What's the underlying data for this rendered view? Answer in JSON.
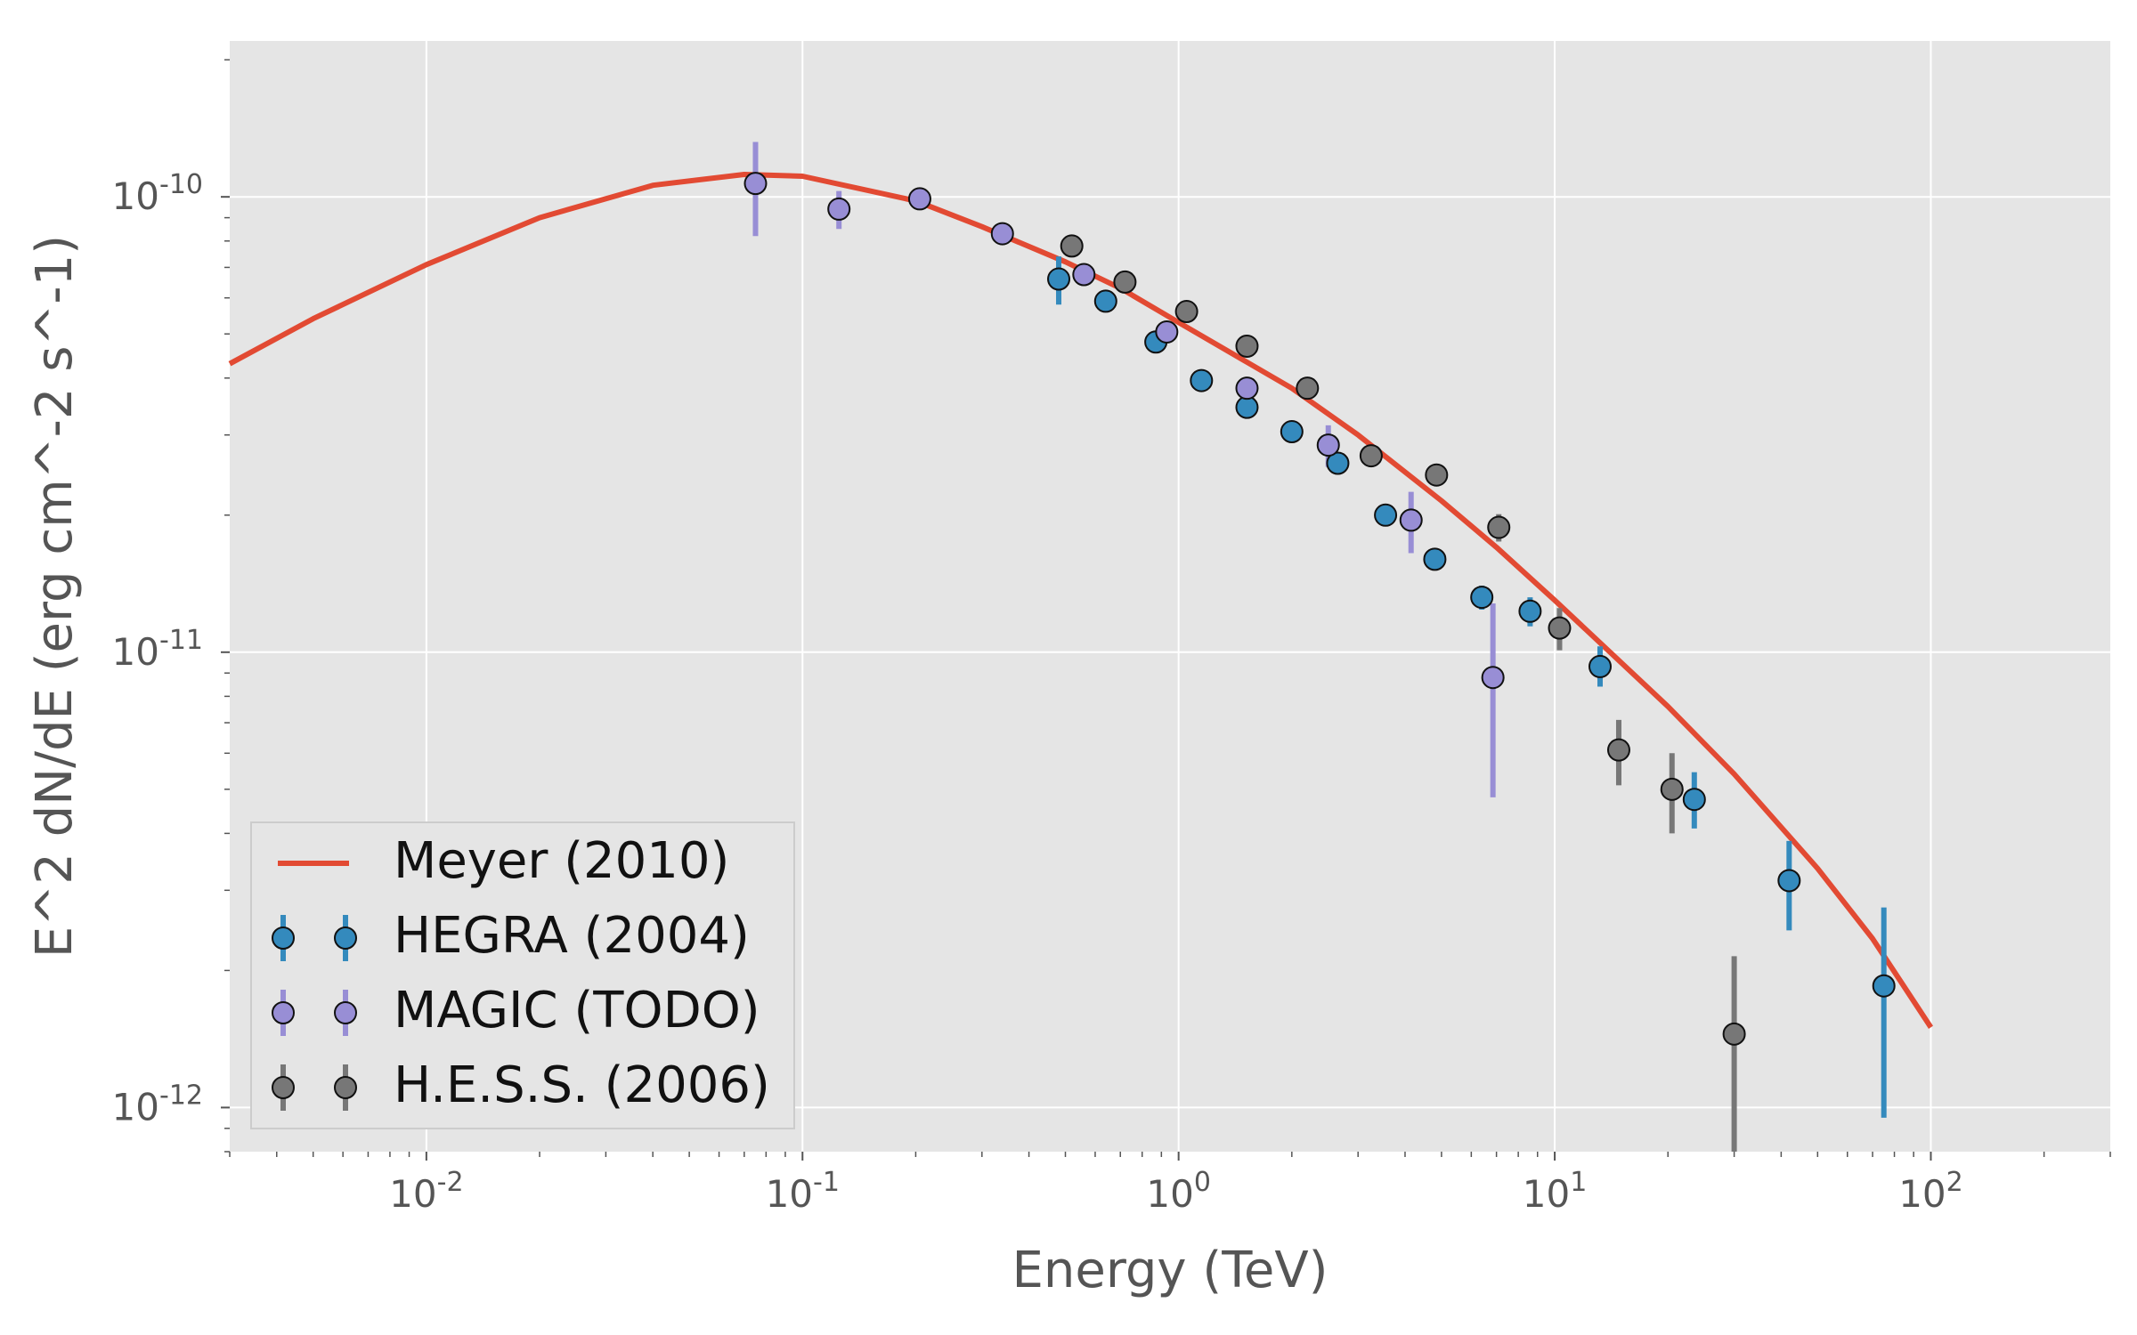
{
  "chart_data": {
    "type": "scatter",
    "title": "",
    "xlabel": "Energy (TeV)",
    "ylabel": "E^2 dN/dE (erg cm^-2 s^-1)",
    "xscale": "log",
    "yscale": "log",
    "xlim": [
      0.003,
      300
    ],
    "ylim": [
      8e-13,
      2.2e-10
    ],
    "grid": true,
    "legend_position": "lower left",
    "x_ticks": [
      {
        "value": 0.01,
        "base": "10",
        "exp": "-2"
      },
      {
        "value": 0.1,
        "base": "10",
        "exp": "-1"
      },
      {
        "value": 1,
        "base": "10",
        "exp": "0"
      },
      {
        "value": 10,
        "base": "10",
        "exp": "1"
      },
      {
        "value": 100,
        "base": "10",
        "exp": "2"
      }
    ],
    "y_ticks": [
      {
        "value": 1e-12,
        "base": "10",
        "exp": "-12"
      },
      {
        "value": 1e-11,
        "base": "10",
        "exp": "-11"
      },
      {
        "value": 1e-10,
        "base": "10",
        "exp": "-10"
      }
    ],
    "model": {
      "name": "Meyer (2010)",
      "color": "#E24A33",
      "x": [
        0.003,
        0.005,
        0.01,
        0.02,
        0.04,
        0.07,
        0.1,
        0.2,
        0.3,
        0.5,
        0.7,
        1,
        2,
        3,
        5,
        7,
        10,
        20,
        30,
        50,
        70,
        100
      ],
      "y": [
        4.3e-11,
        5.4e-11,
        7.1e-11,
        9e-11,
        1.06e-10,
        1.12e-10,
        1.11e-10,
        9.8e-11,
        8.6e-11,
        7.2e-11,
        6.3e-11,
        5.3e-11,
        3.8e-11,
        3e-11,
        2.15e-11,
        1.7e-11,
        1.3e-11,
        7.6e-12,
        5.4e-12,
        3.35e-12,
        2.35e-12,
        1.5e-12
      ]
    },
    "series": [
      {
        "name": "HEGRA (2004)",
        "color": "#348ABD",
        "points": [
          {
            "x": 0.48,
            "y": 6.6e-11,
            "lo": 5.8e-11,
            "hi": 7.4e-11
          },
          {
            "x": 0.64,
            "y": 5.9e-11,
            "lo": 5.6e-11,
            "hi": 6.2e-11
          },
          {
            "x": 0.87,
            "y": 4.8e-11,
            "lo": 4.6e-11,
            "hi": 5e-11
          },
          {
            "x": 1.15,
            "y": 3.95e-11,
            "lo": 3.8e-11,
            "hi": 4.1e-11
          },
          {
            "x": 1.52,
            "y": 3.45e-11,
            "lo": 3.3e-11,
            "hi": 3.6e-11
          },
          {
            "x": 2.0,
            "y": 3.05e-11,
            "lo": 2.95e-11,
            "hi": 3.15e-11
          },
          {
            "x": 2.65,
            "y": 2.6e-11,
            "lo": 2.5e-11,
            "hi": 2.7e-11
          },
          {
            "x": 3.55,
            "y": 2e-11,
            "lo": 1.92e-11,
            "hi": 2.08e-11
          },
          {
            "x": 4.8,
            "y": 1.6e-11,
            "lo": 1.53e-11,
            "hi": 1.67e-11
          },
          {
            "x": 6.4,
            "y": 1.32e-11,
            "lo": 1.24e-11,
            "hi": 1.4e-11
          },
          {
            "x": 8.6,
            "y": 1.23e-11,
            "lo": 1.14e-11,
            "hi": 1.32e-11
          },
          {
            "x": 13.2,
            "y": 9.3e-12,
            "lo": 8.4e-12,
            "hi": 1.03e-11
          },
          {
            "x": 23.5,
            "y": 4.75e-12,
            "lo": 4.1e-12,
            "hi": 5.45e-12
          },
          {
            "x": 42,
            "y": 3.15e-12,
            "lo": 2.45e-12,
            "hi": 3.85e-12
          },
          {
            "x": 75,
            "y": 1.85e-12,
            "lo": 9.5e-13,
            "hi": 2.75e-12
          }
        ]
      },
      {
        "name": "MAGIC (TODO)",
        "color": "#988ED5",
        "points": [
          {
            "x": 0.075,
            "y": 1.07e-10,
            "lo": 8.2e-11,
            "hi": 1.32e-10
          },
          {
            "x": 0.125,
            "y": 9.4e-11,
            "lo": 8.5e-11,
            "hi": 1.03e-10
          },
          {
            "x": 0.205,
            "y": 9.9e-11,
            "lo": 9.6e-11,
            "hi": 1.02e-10
          },
          {
            "x": 0.34,
            "y": 8.3e-11,
            "lo": 8.1e-11,
            "hi": 8.5e-11
          },
          {
            "x": 0.56,
            "y": 6.75e-11,
            "lo": 6.6e-11,
            "hi": 6.9e-11
          },
          {
            "x": 0.93,
            "y": 5.05e-11,
            "lo": 4.9e-11,
            "hi": 5.2e-11
          },
          {
            "x": 1.52,
            "y": 3.8e-11,
            "lo": 3.6e-11,
            "hi": 4e-11
          },
          {
            "x": 2.5,
            "y": 2.85e-11,
            "lo": 2.55e-11,
            "hi": 3.15e-11
          },
          {
            "x": 4.15,
            "y": 1.95e-11,
            "lo": 1.65e-11,
            "hi": 2.25e-11
          },
          {
            "x": 6.85,
            "y": 8.8e-12,
            "lo": 4.8e-12,
            "hi": 1.28e-11
          }
        ]
      },
      {
        "name": "H.E.S.S. (2006)",
        "color": "#777777",
        "points": [
          {
            "x": 0.52,
            "y": 7.8e-11,
            "lo": 7.6e-11,
            "hi": 8e-11
          },
          {
            "x": 0.72,
            "y": 6.5e-11,
            "lo": 6.35e-11,
            "hi": 6.65e-11
          },
          {
            "x": 1.05,
            "y": 5.6e-11,
            "lo": 5.45e-11,
            "hi": 5.75e-11
          },
          {
            "x": 1.52,
            "y": 4.7e-11,
            "lo": 4.55e-11,
            "hi": 4.85e-11
          },
          {
            "x": 2.2,
            "y": 3.8e-11,
            "lo": 3.65e-11,
            "hi": 3.95e-11
          },
          {
            "x": 3.25,
            "y": 2.7e-11,
            "lo": 2.6e-11,
            "hi": 2.8e-11
          },
          {
            "x": 4.85,
            "y": 2.45e-11,
            "lo": 2.35e-11,
            "hi": 2.55e-11
          },
          {
            "x": 7.1,
            "y": 1.88e-11,
            "lo": 1.75e-11,
            "hi": 2.01e-11
          },
          {
            "x": 10.3,
            "y": 1.13e-11,
            "lo": 1.01e-11,
            "hi": 1.25e-11
          },
          {
            "x": 14.8,
            "y": 6.1e-12,
            "lo": 5.1e-12,
            "hi": 7.1e-12
          },
          {
            "x": 20.5,
            "y": 5e-12,
            "lo": 4e-12,
            "hi": 6e-12
          },
          {
            "x": 30,
            "y": 1.45e-12,
            "lo": 7.5e-13,
            "hi": 2.15e-12
          }
        ]
      }
    ]
  }
}
